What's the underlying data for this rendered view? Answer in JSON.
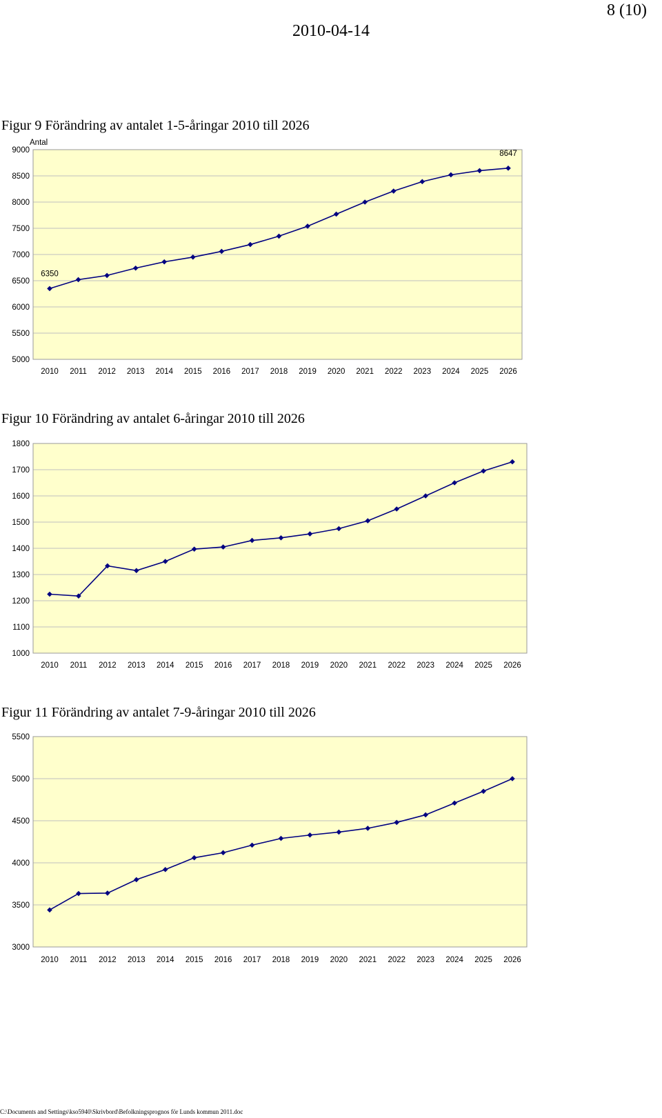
{
  "header": {
    "page_number": "8 (10)",
    "date": "2010-04-14"
  },
  "footer": {
    "path": "C:\\Documents and Settings\\kso5940\\Skrivbord\\Befolkningsprognos för Lunds kommun 2011.doc"
  },
  "colors": {
    "plot_background": "#FFFFCC",
    "series_line": "#000080",
    "gridline": "#BFBFBF"
  },
  "chart_data": [
    {
      "type": "line",
      "title": "Figur 9 Förändring av antalet 1-5-åringar 2010 till 2026",
      "ylabel": "Antal",
      "xlabel": "",
      "categories": [
        "2010",
        "2011",
        "2012",
        "2013",
        "2014",
        "2015",
        "2016",
        "2017",
        "2018",
        "2019",
        "2020",
        "2021",
        "2022",
        "2023",
        "2024",
        "2025",
        "2026"
      ],
      "series": [
        {
          "values": [
            6350,
            6520,
            6600,
            6740,
            6860,
            6950,
            7060,
            7190,
            7350,
            7540,
            7770,
            8000,
            8210,
            8390,
            8520,
            8600,
            8647
          ]
        }
      ],
      "yticks": [
        "9000",
        "8500",
        "8000",
        "7500",
        "7000",
        "6500",
        "6000",
        "5500",
        "5000"
      ],
      "ylim": [
        5000,
        9000
      ],
      "data_labels": [
        {
          "index": 0,
          "text": "6350"
        },
        {
          "index": 16,
          "text": "8647"
        }
      ],
      "grid": true,
      "legend": "none"
    },
    {
      "type": "line",
      "title": "Figur 10 Förändring av antalet 6-åringar 2010 till 2026",
      "ylabel": "",
      "xlabel": "",
      "categories": [
        "2010",
        "2011",
        "2012",
        "2013",
        "2014",
        "2015",
        "2016",
        "2017",
        "2018",
        "2019",
        "2020",
        "2021",
        "2022",
        "2023",
        "2024",
        "2025",
        "2026"
      ],
      "series": [
        {
          "values": [
            1225,
            1218,
            1333,
            1315,
            1350,
            1397,
            1405,
            1430,
            1440,
            1455,
            1475,
            1505,
            1550,
            1600,
            1650,
            1695,
            1730
          ]
        }
      ],
      "yticks": [
        "1800",
        "1700",
        "1600",
        "1500",
        "1400",
        "1300",
        "1200",
        "1100",
        "1000"
      ],
      "ylim": [
        1000,
        1800
      ],
      "data_labels": [],
      "grid": true,
      "legend": "none"
    },
    {
      "type": "line",
      "title": "Figur 11 Förändring av antalet 7-9-åringar 2010 till 2026",
      "ylabel": "",
      "xlabel": "",
      "categories": [
        "2010",
        "2011",
        "2012",
        "2013",
        "2014",
        "2015",
        "2016",
        "2017",
        "2018",
        "2019",
        "2020",
        "2021",
        "2022",
        "2023",
        "2024",
        "2025",
        "2026"
      ],
      "series": [
        {
          "values": [
            3440,
            3635,
            3640,
            3800,
            3920,
            4060,
            4120,
            4210,
            4290,
            4330,
            4365,
            4410,
            4480,
            4570,
            4710,
            4850,
            5000
          ]
        }
      ],
      "yticks": [
        "5500",
        "5000",
        "4500",
        "4000",
        "3500",
        "3000"
      ],
      "ylim": [
        3000,
        5500
      ],
      "data_labels": [],
      "grid": true,
      "legend": "none"
    }
  ]
}
